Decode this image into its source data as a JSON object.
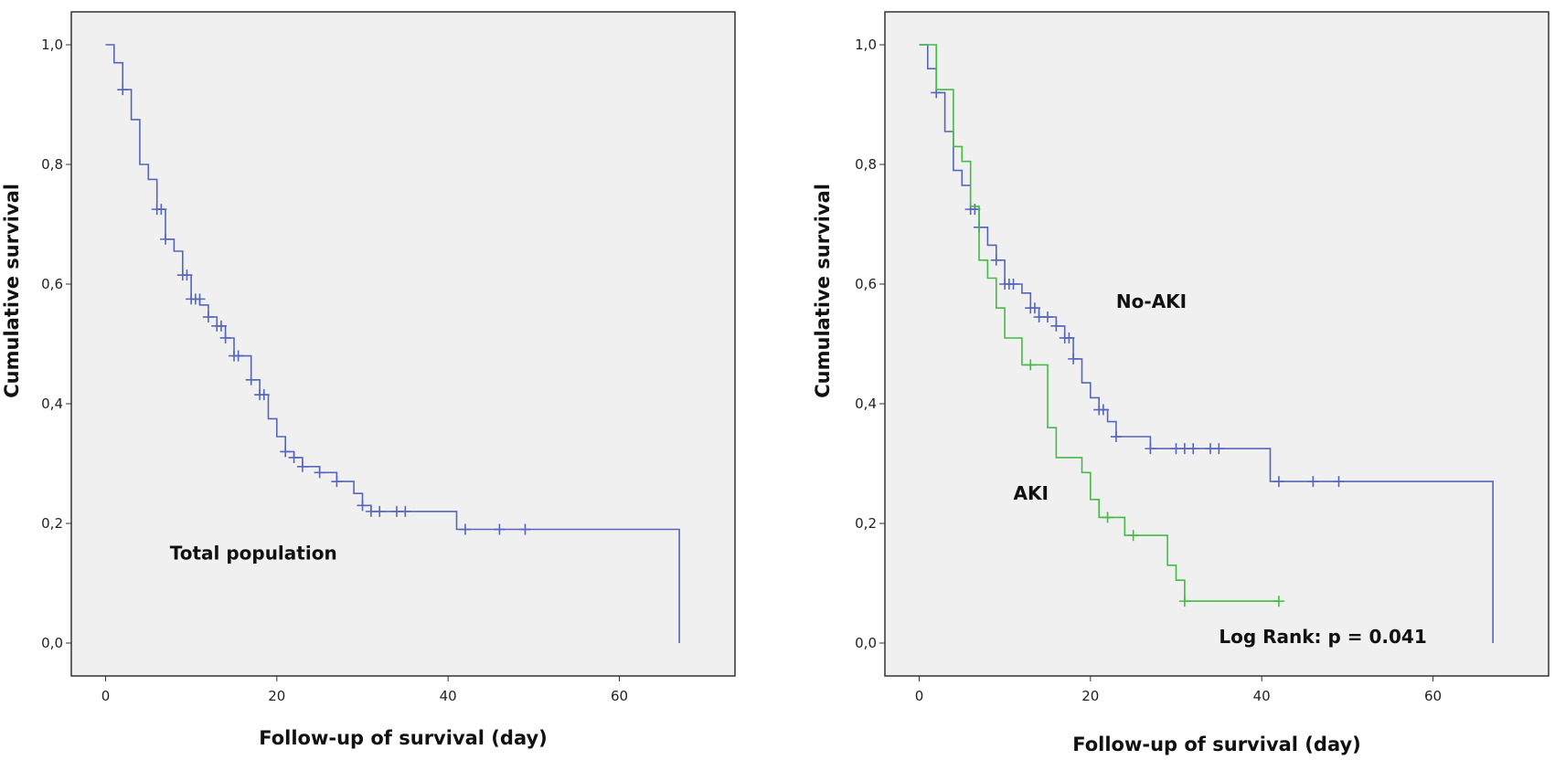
{
  "chart_data": [
    {
      "type": "line",
      "title": "",
      "xlabel": "Follow-up of survival (day)",
      "ylabel": "Cumulative survival",
      "xlim": [
        -4,
        73.5
      ],
      "ylim": [
        -0.055,
        1.055
      ],
      "xticks": [
        0,
        20,
        40,
        60
      ],
      "xtick_labels": [
        "0",
        "20",
        "40",
        "60"
      ],
      "yticks": [
        0,
        0.2,
        0.4,
        0.6,
        0.8,
        1.0
      ],
      "ytick_labels": [
        "0,0",
        "0,2",
        "0,4",
        "0,6",
        "0,8",
        "1,0"
      ],
      "grid": false,
      "plot_background": "#f0f0f0",
      "annotations": [
        {
          "text": "Total population",
          "x": 7.5,
          "y": 0.14
        }
      ],
      "series": [
        {
          "color": "#5566bb",
          "style": "step",
          "x": [
            0,
            1,
            2,
            3,
            4,
            5,
            6,
            7,
            8,
            9,
            10,
            11,
            12,
            13,
            14,
            15,
            17,
            18,
            19,
            20,
            21,
            22,
            23,
            25,
            27,
            29,
            30,
            31,
            41,
            67,
            67
          ],
          "y": [
            1.0,
            0.97,
            0.925,
            0.875,
            0.8,
            0.775,
            0.725,
            0.675,
            0.655,
            0.615,
            0.575,
            0.565,
            0.545,
            0.53,
            0.51,
            0.48,
            0.44,
            0.415,
            0.375,
            0.345,
            0.32,
            0.31,
            0.295,
            0.285,
            0.27,
            0.25,
            0.23,
            0.22,
            0.19,
            0.19,
            0.0
          ],
          "censor_x": [
            2,
            6,
            6.5,
            7,
            9,
            9.5,
            10,
            10.5,
            11,
            12,
            13,
            13.5,
            14,
            15,
            15.5,
            17,
            18,
            18.5,
            21,
            22,
            23,
            25,
            27,
            30,
            31,
            32,
            34,
            35,
            42,
            46,
            49
          ],
          "censor_y": [
            0.925,
            0.725,
            0.725,
            0.675,
            0.615,
            0.615,
            0.575,
            0.575,
            0.575,
            0.545,
            0.53,
            0.53,
            0.51,
            0.48,
            0.48,
            0.44,
            0.415,
            0.415,
            0.32,
            0.31,
            0.295,
            0.285,
            0.27,
            0.23,
            0.22,
            0.22,
            0.22,
            0.22,
            0.19,
            0.19,
            0.19
          ]
        }
      ]
    },
    {
      "type": "line",
      "title": "",
      "xlabel": "Follow-up of survival (day)",
      "ylabel": "Cumulative survival",
      "xlim": [
        -4,
        73.5
      ],
      "ylim": [
        -0.055,
        1.055
      ],
      "xticks": [
        0,
        20,
        40,
        60
      ],
      "xtick_labels": [
        "0",
        "20",
        "40",
        "60"
      ],
      "yticks": [
        0,
        0.2,
        0.4,
        0.6,
        0.8,
        1.0
      ],
      "ytick_labels": [
        "0,0",
        "0,2",
        "0,4",
        "0,6",
        "0,8",
        "1,0"
      ],
      "grid": false,
      "plot_background": "#f0f0f0",
      "annotations": [
        {
          "text": "No-AKI",
          "x": 23,
          "y": 0.56
        },
        {
          "text": "AKI",
          "x": 11,
          "y": 0.24
        },
        {
          "text": "Log Rank: p = 0.041",
          "x": 35,
          "y": 0.0
        }
      ],
      "series": [
        {
          "color": "#5566bb",
          "style": "step",
          "x": [
            0,
            1,
            2,
            3,
            4,
            5,
            6,
            7,
            8,
            9,
            10,
            12,
            13,
            14,
            16,
            17,
            18,
            19,
            20,
            21,
            22,
            23,
            27,
            41,
            67,
            67
          ],
          "y": [
            1.0,
            0.96,
            0.92,
            0.855,
            0.79,
            0.765,
            0.725,
            0.695,
            0.665,
            0.64,
            0.6,
            0.585,
            0.56,
            0.545,
            0.53,
            0.51,
            0.475,
            0.435,
            0.41,
            0.39,
            0.37,
            0.345,
            0.325,
            0.27,
            0.27,
            0.0
          ],
          "censor_x": [
            2,
            6,
            6.5,
            7,
            9,
            10,
            10.5,
            11,
            13,
            13.5,
            14,
            15,
            16,
            17,
            17.5,
            18,
            21,
            21.5,
            23,
            27,
            30,
            31,
            32,
            34,
            35,
            42,
            46,
            49
          ],
          "censor_y": [
            0.92,
            0.725,
            0.725,
            0.695,
            0.64,
            0.6,
            0.6,
            0.6,
            0.56,
            0.56,
            0.545,
            0.545,
            0.53,
            0.51,
            0.51,
            0.475,
            0.39,
            0.39,
            0.345,
            0.325,
            0.325,
            0.325,
            0.325,
            0.325,
            0.325,
            0.27,
            0.27,
            0.27
          ]
        },
        {
          "color": "#44bb44",
          "style": "step",
          "x": [
            0,
            2,
            4,
            5,
            6,
            7,
            8,
            9,
            10,
            12,
            15,
            16,
            19,
            20,
            21,
            24,
            29,
            30,
            31,
            42
          ],
          "y": [
            1.0,
            0.925,
            0.83,
            0.805,
            0.73,
            0.64,
            0.61,
            0.56,
            0.51,
            0.465,
            0.36,
            0.31,
            0.285,
            0.24,
            0.21,
            0.18,
            0.13,
            0.105,
            0.07,
            0.07
          ],
          "censor_x": [
            13,
            22,
            25,
            31,
            42
          ],
          "censor_y": [
            0.465,
            0.21,
            0.18,
            0.07,
            0.07
          ]
        }
      ]
    }
  ]
}
